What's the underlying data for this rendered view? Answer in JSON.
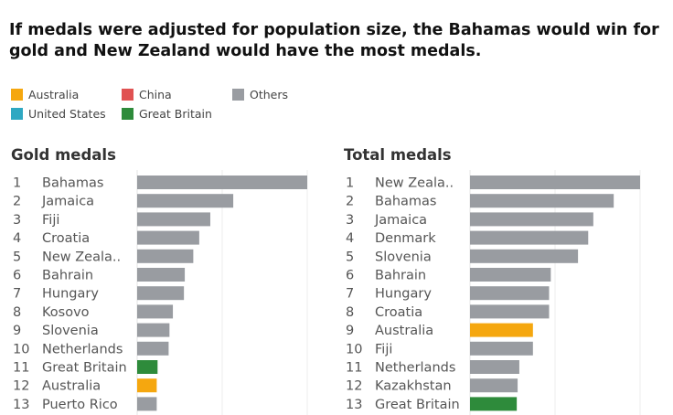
{
  "title": "If medals were adjusted for population size, the Bahamas would win for gold and New Zealand would have the most medals.",
  "legend": [
    {
      "label": "Australia",
      "color": "#f5a70f"
    },
    {
      "label": "China",
      "color": "#e05252"
    },
    {
      "label": "Others",
      "color": "#999ca1"
    },
    {
      "label": "United States",
      "color": "#2fa8c2"
    },
    {
      "label": "Great Britain",
      "color": "#2e8b3b"
    }
  ],
  "colors": {
    "Australia": "#f5a70f",
    "China": "#e05252",
    "United States": "#2fa8c2",
    "Great Britain": "#2e8b3b",
    "Others": "#999ca1"
  },
  "chart_data": [
    {
      "type": "bar",
      "title": "Gold medals",
      "orientation": "horizontal",
      "value_unit": "relative bar length (max = 1.0)",
      "ranks": [
        "1",
        "2",
        "3",
        "4",
        "5",
        "6",
        "7",
        "8",
        "9",
        "10",
        "11",
        "12",
        "13"
      ],
      "categories": [
        "Bahamas",
        "Jamaica",
        "Fiji",
        "Croatia",
        "New Zeala..",
        "Bahrain",
        "Hungary",
        "Kosovo",
        "Slovenia",
        "Netherlands",
        "Great Britain",
        "Australia",
        "Puerto Rico"
      ],
      "values": [
        1.0,
        0.565,
        0.43,
        0.365,
        0.33,
        0.28,
        0.275,
        0.21,
        0.19,
        0.185,
        0.12,
        0.115,
        0.115
      ],
      "groups": [
        "Others",
        "Others",
        "Others",
        "Others",
        "Others",
        "Others",
        "Others",
        "Others",
        "Others",
        "Others",
        "Great Britain",
        "Australia",
        "Others"
      ],
      "grid": true
    },
    {
      "type": "bar",
      "title": "Total medals",
      "orientation": "horizontal",
      "value_unit": "relative bar length (max = 1.0)",
      "ranks": [
        "1",
        "2",
        "3",
        "4",
        "5",
        "6",
        "7",
        "8",
        "9",
        "10",
        "11",
        "12",
        "13"
      ],
      "categories": [
        "New Zeala..",
        "Bahamas",
        "Jamaica",
        "Denmark",
        "Slovenia",
        "Bahrain",
        "Hungary",
        "Croatia",
        "Australia",
        "Fiji",
        "Netherlands",
        "Kazakhstan",
        "Great Britain"
      ],
      "values": [
        1.0,
        0.845,
        0.725,
        0.695,
        0.635,
        0.475,
        0.465,
        0.465,
        0.37,
        0.37,
        0.29,
        0.28,
        0.275
      ],
      "groups": [
        "Others",
        "Others",
        "Others",
        "Others",
        "Others",
        "Others",
        "Others",
        "Others",
        "Australia",
        "Others",
        "Others",
        "Others",
        "Great Britain"
      ],
      "grid": true
    }
  ]
}
